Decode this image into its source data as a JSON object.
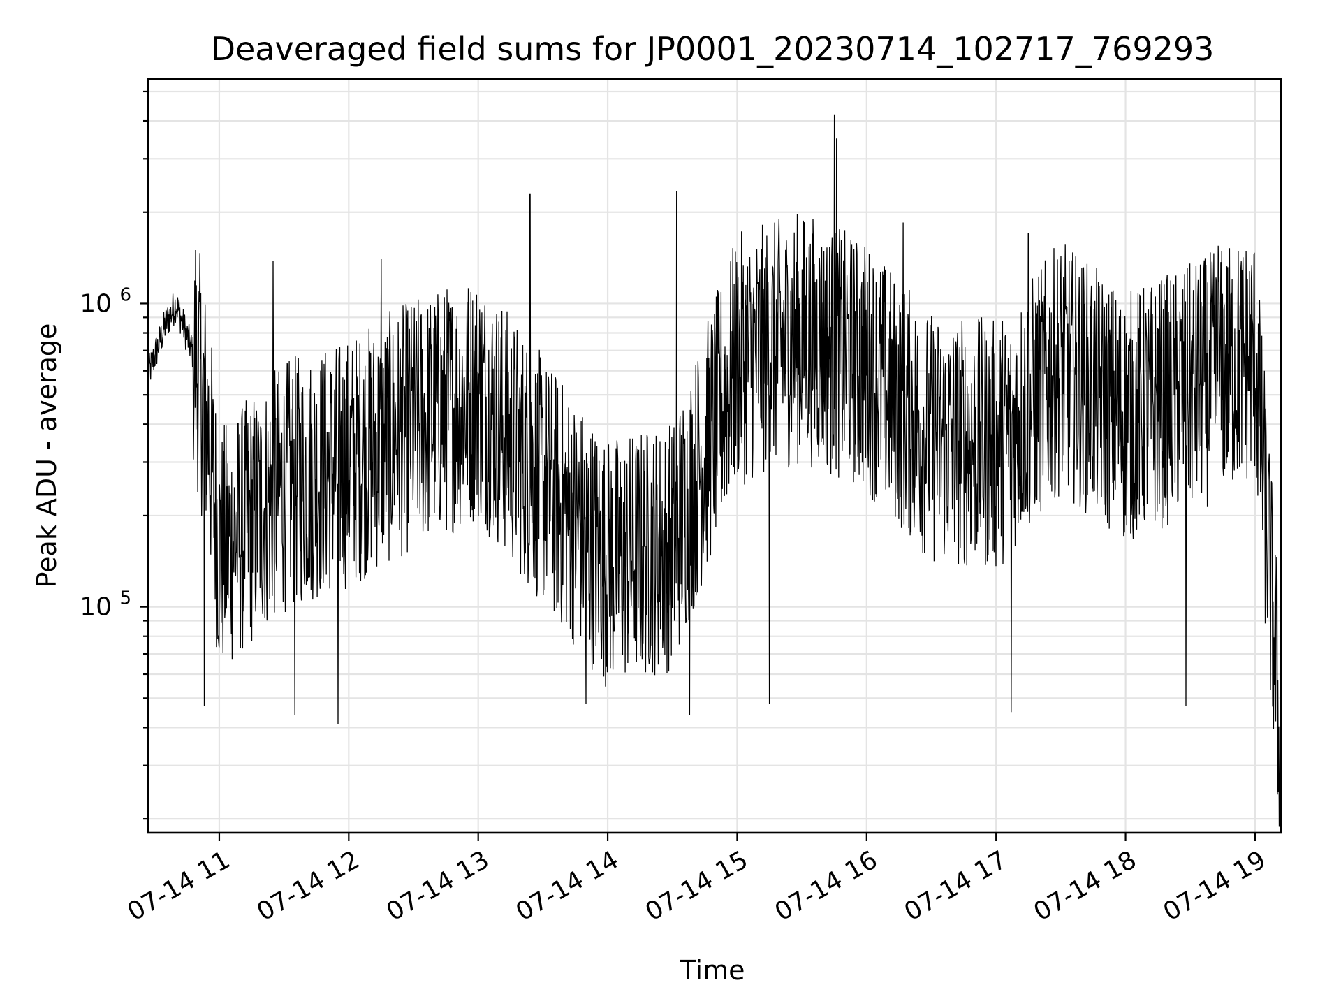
{
  "chart_data": {
    "type": "line",
    "title": "Deaveraged field sums for JP0001_20230714_102717_769293",
    "xlabel": "Time",
    "ylabel": "Peak ADU - average",
    "yscale": "log",
    "x_axis_type": "datetime",
    "xlim": [
      "2023-07-14 10:27",
      "2023-07-14 19:12"
    ],
    "ylim": [
      18000,
      5500000
    ],
    "x_tick_labels": [
      "07-14 11",
      "07-14 12",
      "07-14 13",
      "07-14 14",
      "07-14 15",
      "07-14 16",
      "07-14 17",
      "07-14 18",
      "07-14 19"
    ],
    "y_tick_labels": [
      {
        "value": 100000,
        "base": "10",
        "exp": "5"
      },
      {
        "value": 1000000,
        "base": "10",
        "exp": "6"
      }
    ],
    "grid": true,
    "legend": "none",
    "line_color": "#000000",
    "series": [
      {
        "values_note_free": true,
        "points": [
          [
            "2023-07-14 10:27",
            580000
          ],
          [
            "2023-07-14 10:35",
            850000
          ],
          [
            "2023-07-14 10:40",
            1000000
          ],
          [
            "2023-07-14 10:45",
            780000
          ],
          [
            "2023-07-14 10:50",
            620000
          ],
          [
            "2023-07-14 10:55",
            380000
          ],
          [
            "2023-07-14 11:00",
            150000
          ],
          [
            "2023-07-14 11:30",
            250000
          ],
          [
            "2023-07-14 12:00",
            300000
          ],
          [
            "2023-07-14 12:30",
            400000
          ],
          [
            "2023-07-14 13:00",
            500000
          ],
          [
            "2023-07-14 13:30",
            260000
          ],
          [
            "2023-07-14 14:00",
            140000
          ],
          [
            "2023-07-14 14:30",
            160000
          ],
          [
            "2023-07-14 15:00",
            650000
          ],
          [
            "2023-07-14 15:30",
            780000
          ],
          [
            "2023-07-14 16:00",
            620000
          ],
          [
            "2023-07-14 16:30",
            360000
          ],
          [
            "2023-07-14 17:00",
            340000
          ],
          [
            "2023-07-14 17:30",
            620000
          ],
          [
            "2023-07-14 18:00",
            420000
          ],
          [
            "2023-07-14 18:30",
            520000
          ],
          [
            "2023-07-14 19:00",
            680000
          ],
          [
            "2023-07-14 19:10",
            60000
          ],
          [
            "2023-07-14 19:12",
            22000
          ]
        ],
        "spikes": [
          [
            "2023-07-14 10:49",
            1500000
          ],
          [
            "2023-07-14 11:25",
            1380000
          ],
          [
            "2023-07-14 12:15",
            1400000
          ],
          [
            "2023-07-14 13:24",
            2300000
          ],
          [
            "2023-07-14 14:32",
            2350000
          ],
          [
            "2023-07-14 15:45",
            4200000
          ],
          [
            "2023-07-14 15:46",
            3500000
          ],
          [
            "2023-07-14 16:17",
            1850000
          ],
          [
            "2023-07-14 17:15",
            1700000
          ],
          [
            "2023-07-14 18:43",
            1550000
          ]
        ],
        "dips": [
          [
            "2023-07-14 10:53",
            47000
          ],
          [
            "2023-07-14 11:35",
            44000
          ],
          [
            "2023-07-14 11:55",
            41000
          ],
          [
            "2023-07-14 13:50",
            48000
          ],
          [
            "2023-07-14 14:38",
            44000
          ],
          [
            "2023-07-14 15:15",
            48000
          ],
          [
            "2023-07-14 17:07",
            45000
          ],
          [
            "2023-07-14 18:28",
            47000
          ]
        ]
      }
    ]
  }
}
